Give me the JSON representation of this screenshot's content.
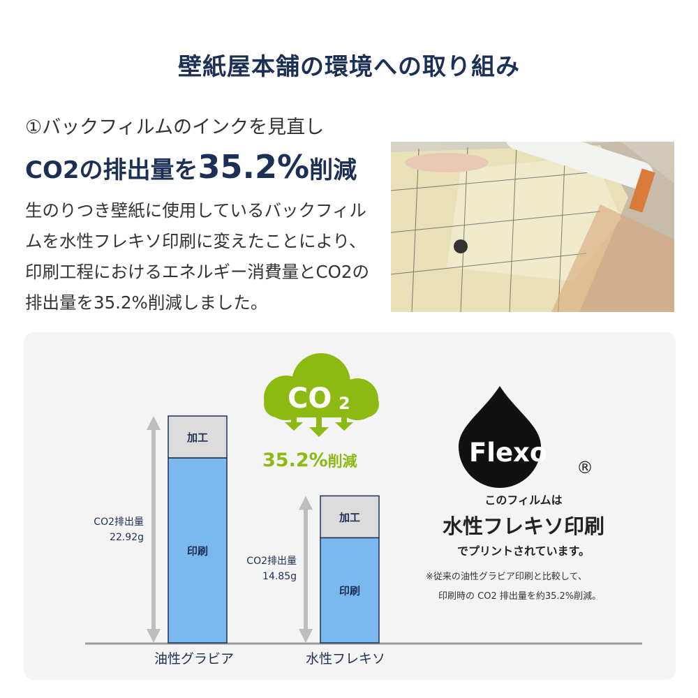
{
  "header": {
    "title": "壁紙屋本舗の環境への取り組み"
  },
  "intro": {
    "subtitle": "①バックフィルムのインクを見直し",
    "headline_pre": "CO2の排出量を",
    "headline_value": "35.2%",
    "headline_post": "削減",
    "body": "生のりつき壁紙に使用しているバックフィルムを水性フレキソ印刷に変えたことにより、印刷工程におけるエネルギー消費量とCO2の排出量を35.2%削減しました。"
  },
  "badge": {
    "icon": "co2-cloud-icon",
    "cloud_text": "CO",
    "cloud_sub": "2",
    "reduction": "35.2%",
    "reduction_suffix": "削減",
    "color": "#8cba12"
  },
  "flexo": {
    "logo_text": "Flexo",
    "registered": "®",
    "line1": "このフィルムは",
    "line2": "水性フレキソ印刷",
    "line3": "でプリントされています。",
    "note1": "※従来の油性グラビア印刷と比較して、",
    "note2": "印刷時の CO2 排出量を約35.2%削減。"
  },
  "chart_data": {
    "type": "bar",
    "stacked": true,
    "categories": [
      "油性グラビア",
      "水性フレキソ"
    ],
    "series": [
      {
        "name": "印刷",
        "values": [
          18.69,
          10.62
        ],
        "color": "#7cb8f0"
      },
      {
        "name": "加工",
        "values": [
          4.23,
          4.23
        ],
        "color": "#dcdcdc"
      }
    ],
    "totals": [
      22.92,
      14.85
    ],
    "total_labels": [
      {
        "label": "CO2排出量",
        "value": "22.92g"
      },
      {
        "label": "CO2排出量",
        "value": "14.85g"
      }
    ],
    "ylim": [
      0,
      24
    ],
    "grid": false,
    "bar_outline": "#1c2f55"
  }
}
